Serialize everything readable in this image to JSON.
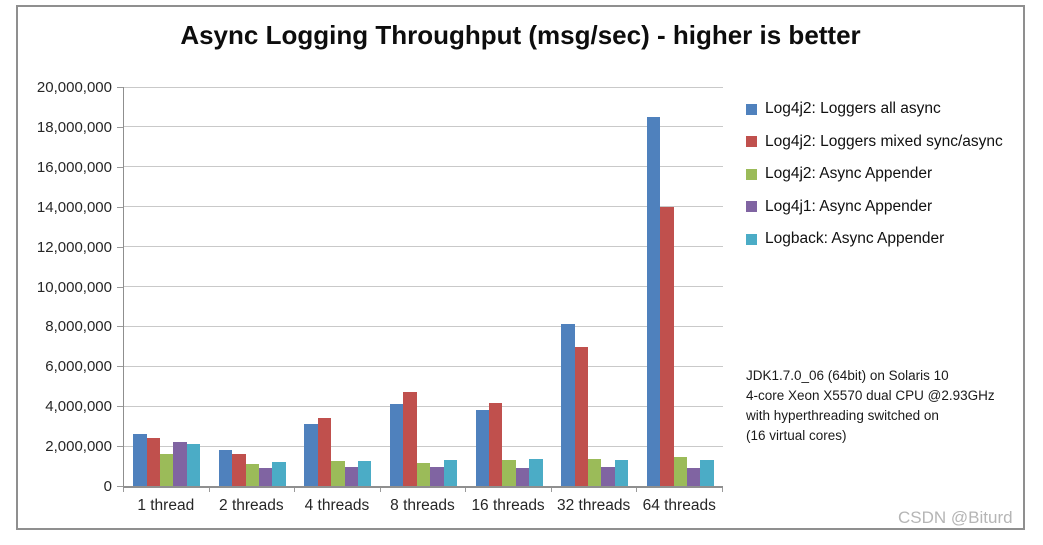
{
  "title": "Async Logging Throughput (msg/sec) - higher is better",
  "watermark": "CSDN @Biturd",
  "annotation": {
    "lines": [
      "JDK1.7.0_06 (64bit) on Solaris 10",
      "4-core Xeon X5570 dual CPU @2.93GHz",
      "with hyperthreading switched on",
      "(16 virtual cores)"
    ]
  },
  "chart_data": {
    "type": "bar",
    "title": "Async Logging Throughput (msg/sec) - higher is better",
    "categories": [
      "1 thread",
      "2 threads",
      "4 threads",
      "8 threads",
      "16 threads",
      "32 threads",
      "64 threads"
    ],
    "series": [
      {
        "name": "Log4j2: Loggers all async",
        "color": "#4F81BD",
        "values": [
          2600000,
          1800000,
          3100000,
          4100000,
          3800000,
          8100000,
          18500000
        ]
      },
      {
        "name": "Log4j2: Loggers mixed sync/async",
        "color": "#C0504D",
        "values": [
          2400000,
          1600000,
          3400000,
          4700000,
          4150000,
          6950000,
          14000000
        ]
      },
      {
        "name": "Log4j2: Async Appender",
        "color": "#9BBB59",
        "values": [
          1600000,
          1100000,
          1250000,
          1150000,
          1300000,
          1350000,
          1450000
        ]
      },
      {
        "name": "Log4j1: Async Appender",
        "color": "#8064A2",
        "values": [
          2200000,
          900000,
          950000,
          950000,
          900000,
          950000,
          900000
        ]
      },
      {
        "name": "Logback: Async Appender",
        "color": "#4BACC6",
        "values": [
          2100000,
          1200000,
          1250000,
          1300000,
          1350000,
          1300000,
          1300000
        ]
      }
    ],
    "xlabel": "",
    "ylabel": "",
    "ylim": [
      0,
      20000000
    ],
    "ytick_step": 2000000,
    "grid": true,
    "legend_position": "right"
  }
}
